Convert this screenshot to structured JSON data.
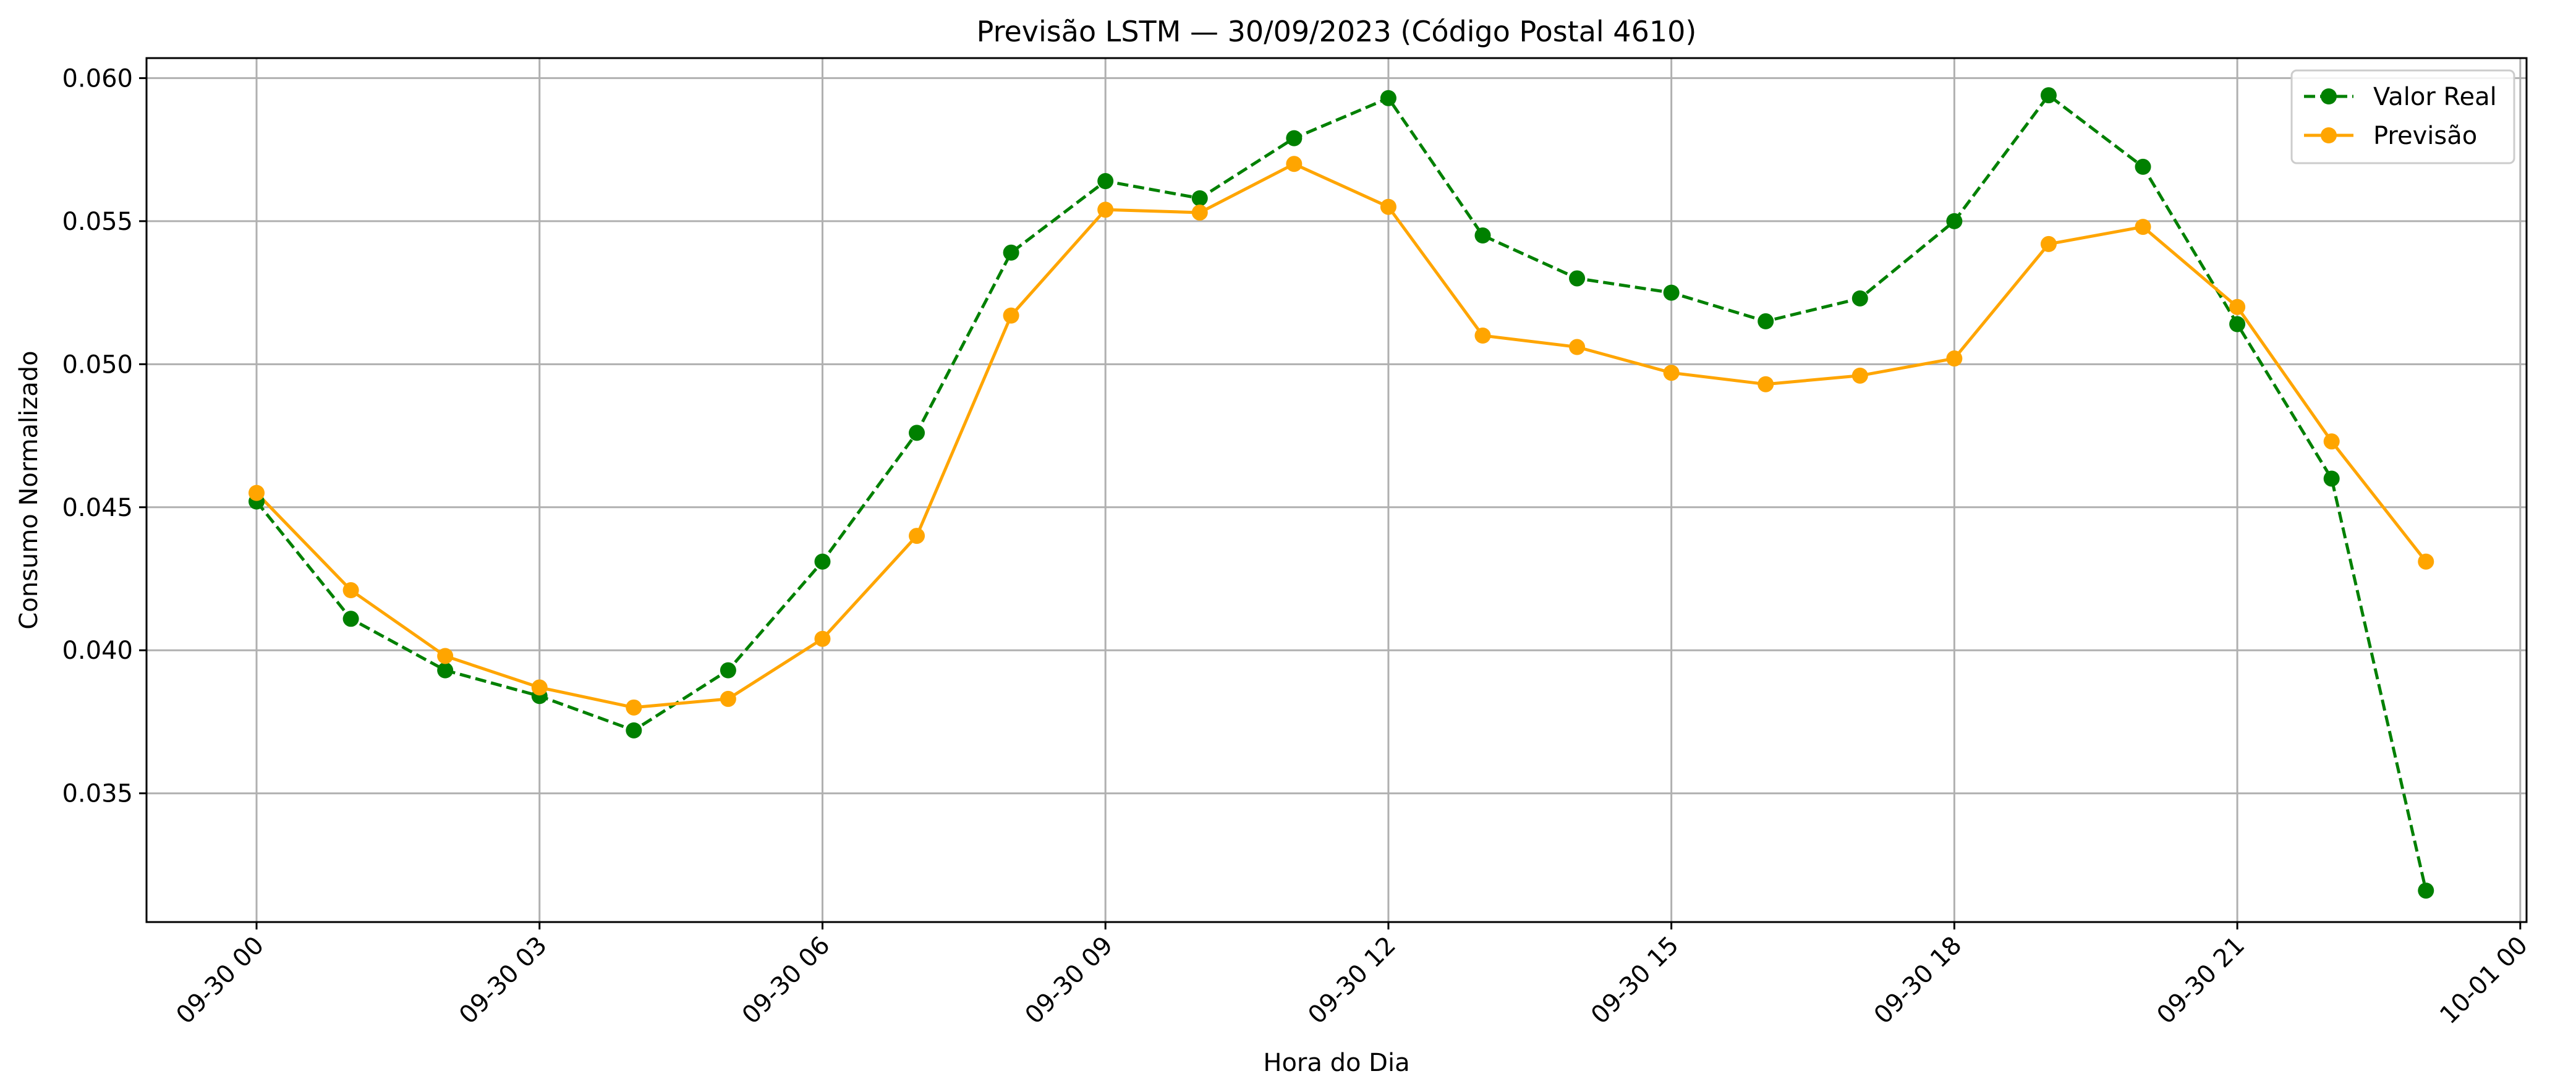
{
  "chart_data": {
    "type": "line",
    "title": "Previsão LSTM — 30/09/2023 (Código Postal 4610)",
    "xlabel": "Hora do Dia",
    "ylabel": "Consumo Normalizado",
    "x": [
      "09-30 00",
      "09-30 01",
      "09-30 02",
      "09-30 03",
      "09-30 04",
      "09-30 05",
      "09-30 06",
      "09-30 07",
      "09-30 08",
      "09-30 09",
      "09-30 10",
      "09-30 11",
      "09-30 12",
      "09-30 13",
      "09-30 14",
      "09-30 15",
      "09-30 16",
      "09-30 17",
      "09-30 18",
      "09-30 19",
      "09-30 20",
      "09-30 21",
      "09-30 22",
      "09-30 23"
    ],
    "x_tick_labels": [
      "09-30 00",
      "09-30 03",
      "09-30 06",
      "09-30 09",
      "09-30 12",
      "09-30 15",
      "09-30 18",
      "09-30 21",
      "10-01 00"
    ],
    "xlim": [
      "09-29 22:50",
      "10-01 00:04"
    ],
    "ylim": [
      0.0305,
      0.0607
    ],
    "y_ticks": [
      0.035,
      0.04,
      0.045,
      0.05,
      0.055,
      0.06
    ],
    "y_tick_labels": [
      "0.035",
      "0.040",
      "0.045",
      "0.050",
      "0.055",
      "0.060"
    ],
    "grid": true,
    "legend_position": "top-right",
    "series": [
      {
        "name": "Valor Real",
        "color": "#008000",
        "line_style": "dashed",
        "marker": "circle",
        "values": [
          0.0452,
          0.0411,
          0.0393,
          0.0384,
          0.0372,
          0.0393,
          0.0431,
          0.0476,
          0.0539,
          0.0564,
          0.0558,
          0.0579,
          0.0593,
          0.0545,
          0.053,
          0.0525,
          0.0515,
          0.0523,
          0.055,
          0.0594,
          0.0569,
          0.0514,
          0.046,
          0.0316
        ]
      },
      {
        "name": "Previsão",
        "color": "#FFA500",
        "line_style": "solid",
        "marker": "circle",
        "values": [
          0.0455,
          0.0421,
          0.0398,
          0.0387,
          0.038,
          0.0383,
          0.0404,
          0.044,
          0.0517,
          0.0554,
          0.0553,
          0.057,
          0.0555,
          0.051,
          0.0506,
          0.0497,
          0.0493,
          0.0496,
          0.0502,
          0.0542,
          0.0548,
          0.052,
          0.0473,
          0.0431
        ]
      }
    ]
  }
}
